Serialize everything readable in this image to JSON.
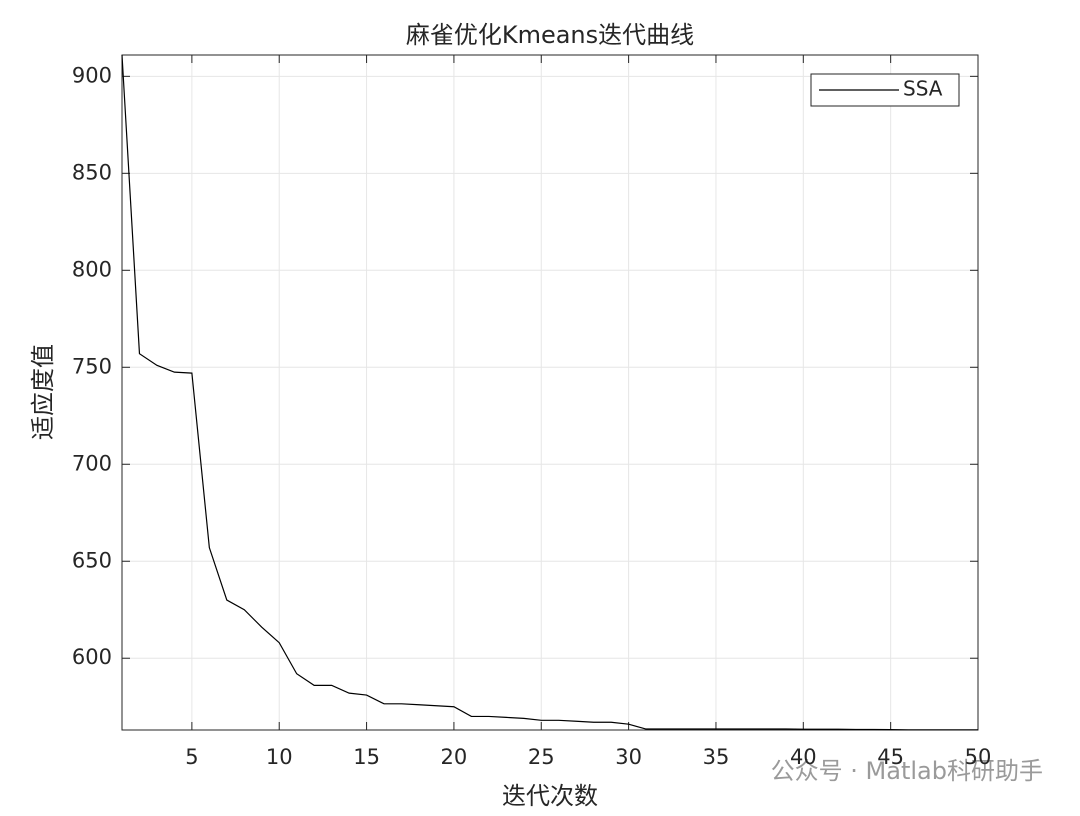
{
  "chart_data": {
    "type": "line",
    "title": "麻雀优化Kmeans迭代曲线",
    "x_label": "迭代次数",
    "y_label": "适应度值",
    "x": [
      1,
      2,
      3,
      4,
      5,
      6,
      7,
      8,
      9,
      10,
      11,
      12,
      13,
      14,
      15,
      16,
      17,
      18,
      19,
      20,
      21,
      22,
      23,
      24,
      25,
      26,
      27,
      28,
      29,
      30,
      31,
      32,
      33,
      34,
      35,
      36,
      37,
      38,
      39,
      40,
      41,
      42,
      43,
      44,
      45,
      46,
      47,
      48,
      49,
      50
    ],
    "series": [
      {
        "name": "SSA",
        "color": "#000000",
        "values": [
          911,
          757,
          751,
          747.5,
          747,
          657,
          630,
          625,
          616,
          608,
          592,
          586,
          586,
          582,
          581,
          576.5,
          576.5,
          576,
          575.5,
          575,
          570,
          570,
          569.5,
          569,
          568,
          568,
          567.5,
          567,
          567,
          566,
          563.5,
          563.5,
          563.5,
          563.5,
          563.5,
          563.5,
          563.5,
          563.5,
          563.5,
          563.4,
          563.4,
          563.4,
          563.3,
          563.3,
          563.2,
          563.1,
          563.1,
          563.1,
          563.1,
          563.1
        ]
      }
    ],
    "xlim": [
      1,
      50
    ],
    "ylim": [
      563,
      911
    ],
    "xticks": [
      5,
      10,
      15,
      20,
      25,
      30,
      35,
      40,
      45,
      50
    ],
    "yticks": [
      600,
      650,
      700,
      750,
      800,
      850,
      900
    ],
    "grid": true,
    "legend_position": "upper right",
    "watermark": "公众号 · Matlab科研助手"
  }
}
